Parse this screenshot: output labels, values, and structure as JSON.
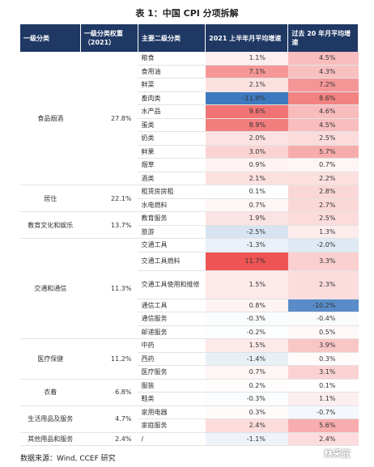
{
  "header": {
    "title": "表 1：中国 CPI 分项拆解"
  },
  "table": {
    "columns": [
      "一级分类",
      "一级分类权重（2021）",
      "主要二级分类",
      "2021 上半年月平均增速",
      "过去 20 年月平均增速"
    ],
    "groups": [
      {
        "name": "食品烟酒",
        "weight": "27.8%",
        "items": [
          [
            "粮食",
            "1.1%",
            "4.5%"
          ],
          [
            "食用油",
            "7.1%",
            "4.3%"
          ],
          [
            "鲜菜",
            "2.1%",
            "7.2%"
          ],
          [
            "畜肉类",
            "-11.9%",
            "8.6%"
          ],
          [
            "水产品",
            "9.6%",
            "4.6%"
          ],
          [
            "蛋类",
            "8.9%",
            "4.5%"
          ],
          [
            "奶类",
            "2.0%",
            "2.5%"
          ],
          [
            "鲜果",
            "3.0%",
            "5.7%"
          ],
          [
            "烟草",
            "0.9%",
            "0.7%"
          ],
          [
            "酒类",
            "2.1%",
            "2.2%"
          ]
        ]
      },
      {
        "name": "居住",
        "weight": "22.1%",
        "items": [
          [
            "租赁房房租",
            "0.1%",
            "2.8%"
          ],
          [
            "水电燃料",
            "0.7%",
            "2.7%"
          ]
        ]
      },
      {
        "name": "教育文化和娱乐",
        "weight": "13.7%",
        "items": [
          [
            "教育服务",
            "1.9%",
            "2.5%"
          ],
          [
            "旅游",
            "-2.5%",
            "1.3%"
          ]
        ]
      },
      {
        "name": "交通和通信",
        "weight": "11.3%",
        "items": [
          [
            "交通工具",
            "-1.3%",
            "-2.0%"
          ],
          [
            "交通工具燃料",
            "11.7%",
            "3.3%"
          ],
          [
            "交通工具使用和维修",
            "1.5%",
            "2.3%"
          ],
          [
            "通信工具",
            "0.8%",
            "-10.2%"
          ],
          [
            "通信服务",
            "-0.3%",
            "-0.4%"
          ],
          [
            "邮递服务",
            "-0.2%",
            "0.5%"
          ]
        ]
      },
      {
        "name": "医疗保健",
        "weight": "11.2%",
        "items": [
          [
            "中药",
            "1.5%",
            "3.9%"
          ],
          [
            "西药",
            "-1.4%",
            "0.3%"
          ],
          [
            "医疗服务",
            "0.7%",
            "3.1%"
          ]
        ]
      },
      {
        "name": "衣着",
        "weight": "6.8%",
        "items": [
          [
            "服装",
            "0.2%",
            "0.1%"
          ],
          [
            "鞋类",
            "-0.3%",
            "1.1%"
          ]
        ]
      },
      {
        "name": "生活用品及服务",
        "weight": "4.7%",
        "items": [
          [
            "家用电器",
            "0.3%",
            "-0.7%"
          ],
          [
            "家庭服务",
            "2.4%",
            "5.6%"
          ]
        ]
      },
      {
        "name": "其他用品和服务",
        "weight": "2.4%",
        "items": [
          [
            "/",
            "-1.1%",
            "2.4%"
          ]
        ]
      }
    ]
  },
  "footer": {
    "source": "数据来源：Wind, CCEF 研究",
    "watermark": "林采宜"
  }
}
